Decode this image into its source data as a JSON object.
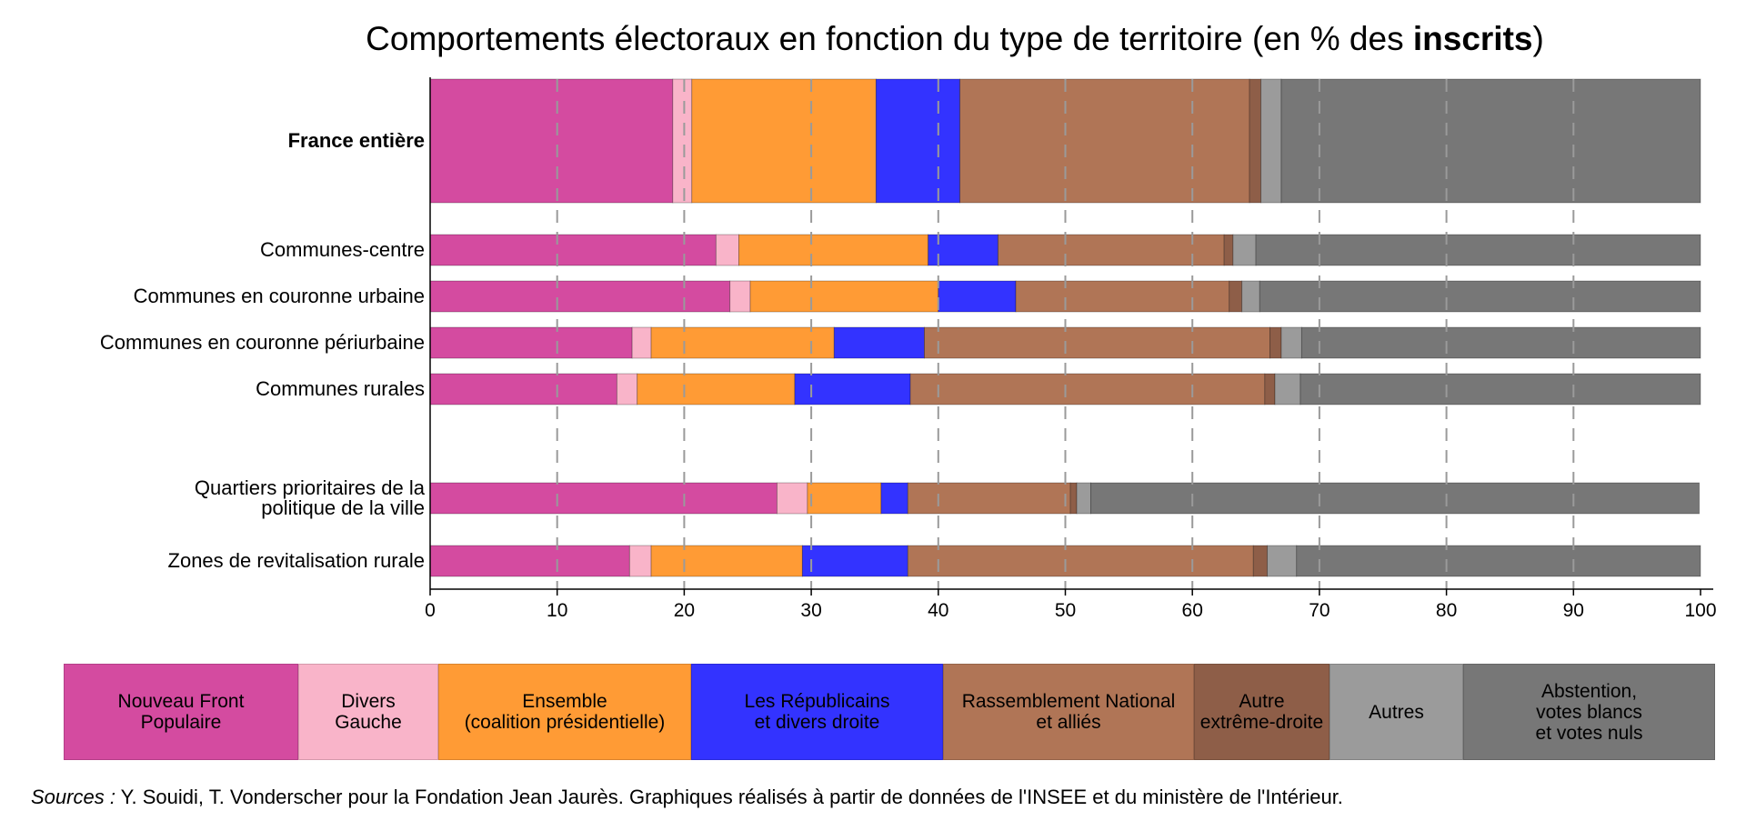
{
  "chart_data": {
    "type": "bar",
    "orientation": "horizontal",
    "stacked": true,
    "title": {
      "prefix": "Comportements électoraux en fonction du type de territoire (en % des ",
      "bold": "inscrits",
      "suffix": ")"
    },
    "categories": [
      "France entière",
      "Communes-centre",
      "Communes en couronne urbaine",
      "Communes en couronne périurbaine",
      "Communes rurales",
      "Quartiers prioritaires de la\npolitique de la ville",
      "Zones de revitalisation rurale"
    ],
    "series": [
      {
        "name": "Nouveau Front\nPopulaire",
        "color": "#d44ba0",
        "values": [
          19.1,
          22.5,
          23.6,
          15.9,
          14.7,
          27.3,
          15.7
        ]
      },
      {
        "name": "Divers\nGauche",
        "color": "#f9b4c9",
        "values": [
          1.5,
          1.8,
          1.6,
          1.5,
          1.6,
          2.4,
          1.7
        ]
      },
      {
        "name": "Ensemble\n(coalition présidentielle)",
        "color": "#ff9b35",
        "values": [
          14.5,
          14.9,
          14.8,
          14.4,
          12.4,
          5.8,
          11.9
        ]
      },
      {
        "name": "Les Républicains\net divers droite",
        "color": "#3333ff",
        "values": [
          6.6,
          5.5,
          6.1,
          7.1,
          9.1,
          2.1,
          8.3
        ]
      },
      {
        "name": "Rassemblement National\net alliés",
        "color": "#b07556",
        "values": [
          22.8,
          17.8,
          16.8,
          27.2,
          27.9,
          12.8,
          27.2
        ]
      },
      {
        "name": "Autre\nextrême-droite",
        "color": "#8e5e48",
        "values": [
          0.9,
          0.7,
          1.0,
          0.9,
          0.8,
          0.5,
          1.1
        ]
      },
      {
        "name": "Autres",
        "color": "#9b9b9b",
        "values": [
          1.6,
          1.8,
          1.4,
          1.6,
          2.0,
          1.1,
          2.3
        ]
      },
      {
        "name": "Abstention,\nvotes blancs\net votes nuls",
        "color": "#777777",
        "values": [
          33.0,
          35.0,
          34.7,
          31.4,
          31.5,
          47.9,
          31.8
        ]
      }
    ],
    "xlim": [
      0,
      100
    ],
    "xticks": [
      0,
      10,
      20,
      30,
      40,
      50,
      60,
      70,
      80,
      90,
      100
    ],
    "grid": "vertical dashed",
    "legend_placement": "bottom"
  },
  "sources": {
    "prefix": "Sources :",
    "text": " Y. Souidi, T. Vonderscher pour la Fondation Jean Jaurès. Graphiques réalisés à partir de données de l'INSEE et du ministère de l'Intérieur."
  }
}
